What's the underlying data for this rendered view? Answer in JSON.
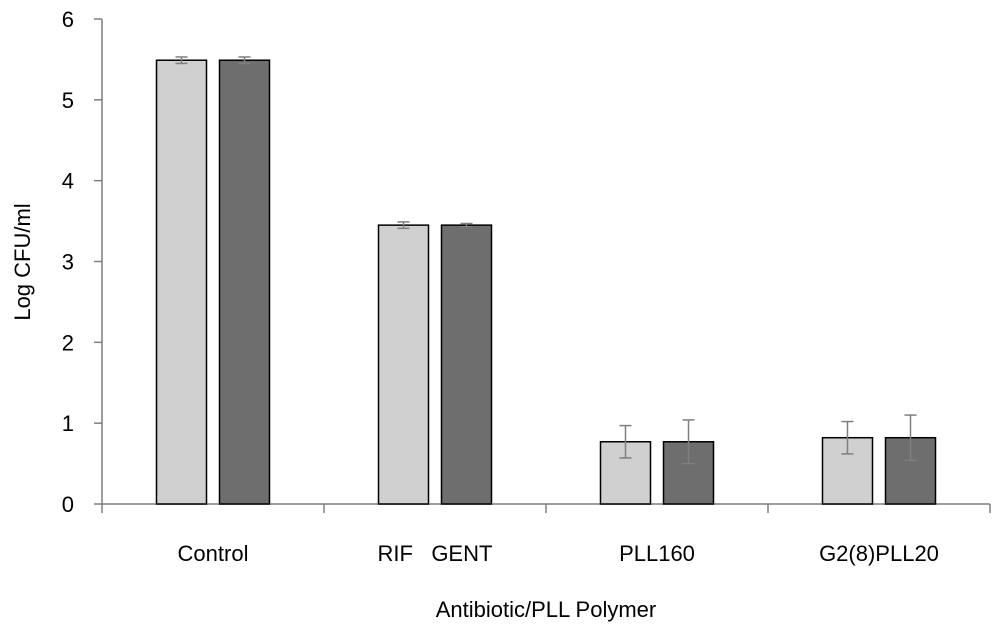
{
  "chart_data": {
    "type": "bar",
    "title": "",
    "xlabel": "Antibiotic/PLL Polymer",
    "ylabel": "Log CFU/ml",
    "ylim": [
      0,
      6
    ],
    "yticks": [
      "0",
      "1",
      "2",
      "3",
      "4",
      "5",
      "6"
    ],
    "categories": [
      "Control",
      "RIF   GENT",
      "PLL160",
      "G2(8)PLL20"
    ],
    "series": [
      {
        "color": "#d0d0d0",
        "values": [
          5.49,
          3.45,
          0.77,
          0.82
        ],
        "errors": [
          0.04,
          0.04,
          0.2,
          0.2
        ]
      },
      {
        "color": "#6e6e6e",
        "values": [
          5.49,
          3.45,
          0.77,
          0.82
        ],
        "errors": [
          0.04,
          0.02,
          0.27,
          0.28
        ]
      }
    ],
    "grid": false,
    "legend": "none"
  }
}
